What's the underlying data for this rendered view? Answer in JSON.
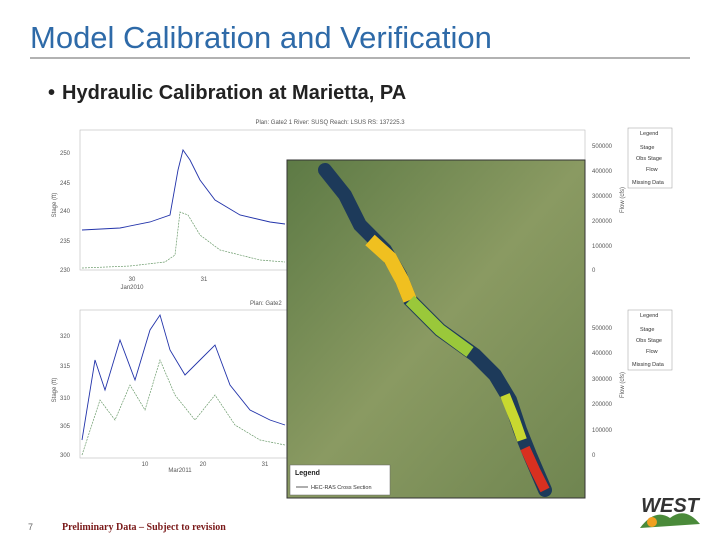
{
  "header": {
    "title": "Model Calibration and Verification"
  },
  "bullet": "Hydraulic Calibration at Marietta, PA",
  "figure": {
    "top_plot": {
      "title": "Plan: Gate2 1   River: SUSQ   Reach: LSUS   RS: 137225.3",
      "y_label": "Stage (ft)",
      "y2_label": "Flow (cfs)",
      "yticks": [
        "250",
        "245",
        "240",
        "235",
        "230"
      ],
      "y2ticks": [
        "500000",
        "400000",
        "300000",
        "200000",
        "100000",
        "0"
      ],
      "xticks": [
        "30",
        "31"
      ],
      "x_label": "Jan2010",
      "legend": [
        "Legend",
        "Stage",
        "Obs Stage",
        "Flow",
        "Missing Data"
      ]
    },
    "bottom_plot": {
      "title": "Plan: Gate2",
      "y_label": "Stage (ft)",
      "y2_label": "Flow (cfs)",
      "yticks": [
        "320",
        "315",
        "310",
        "305",
        "300"
      ],
      "y2ticks": [
        "500000",
        "400000",
        "300000",
        "200000",
        "100000",
        "0"
      ],
      "xticks": [
        "10",
        "20",
        "31"
      ],
      "x_label": "Mar2011",
      "legend": [
        "Legend",
        "Stage",
        "Obs Stage",
        "Flow",
        "Missing Data"
      ]
    },
    "map_legend": {
      "title": "Legend",
      "item": "HEC-RAS Cross Section"
    }
  },
  "footer": {
    "page_number": "7",
    "note": "Preliminary Data – Subject to revision",
    "logo": "WEST"
  }
}
